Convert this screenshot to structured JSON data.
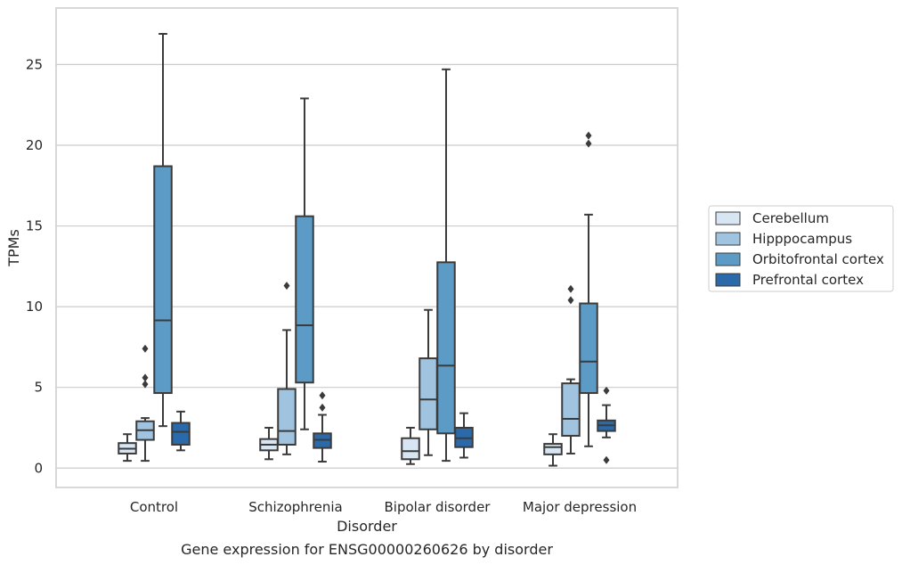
{
  "chart_data": {
    "type": "box",
    "xlabel": "Disorder",
    "ylabel": "TPMs",
    "caption": "Gene expression for ENSG00000260626 by disorder",
    "categories": [
      "Control",
      "Schizophrenia",
      "Bipolar disorder",
      "Major depression"
    ],
    "ylim": [
      -1.2,
      28.5
    ],
    "yticks": [
      0,
      5,
      10,
      15,
      20,
      25
    ],
    "grid": "horizontal",
    "legend_position": "right",
    "series": [
      {
        "name": "Cerebellum",
        "color": "#d8e6f3",
        "boxes": [
          {
            "whisker_low": 0.45,
            "q1": 0.9,
            "median": 1.2,
            "q3": 1.55,
            "whisker_high": 2.1,
            "outliers": []
          },
          {
            "whisker_low": 0.55,
            "q1": 1.1,
            "median": 1.45,
            "q3": 1.8,
            "whisker_high": 2.5,
            "outliers": []
          },
          {
            "whisker_low": 0.25,
            "q1": 0.55,
            "median": 1.05,
            "q3": 1.85,
            "whisker_high": 2.5,
            "outliers": []
          },
          {
            "whisker_low": 0.15,
            "q1": 0.85,
            "median": 1.3,
            "q3": 1.5,
            "whisker_high": 2.1,
            "outliers": []
          }
        ]
      },
      {
        "name": "Hipppocampus",
        "color": "#a0c4df",
        "boxes": [
          {
            "whisker_low": 0.45,
            "q1": 1.75,
            "median": 2.35,
            "q3": 2.9,
            "whisker_high": 3.1,
            "outliers": [
              5.2,
              5.6,
              7.4
            ]
          },
          {
            "whisker_low": 0.85,
            "q1": 1.45,
            "median": 2.3,
            "q3": 4.9,
            "whisker_high": 8.55,
            "outliers": [
              11.3
            ]
          },
          {
            "whisker_low": 0.8,
            "q1": 2.4,
            "median": 4.25,
            "q3": 6.8,
            "whisker_high": 9.8,
            "outliers": []
          },
          {
            "whisker_low": 0.9,
            "q1": 2.0,
            "median": 3.05,
            "q3": 5.25,
            "whisker_high": 5.5,
            "outliers": [
              10.4,
              11.1
            ]
          }
        ]
      },
      {
        "name": "Orbitofrontal cortex",
        "color": "#5b9bc6",
        "boxes": [
          {
            "whisker_low": 2.6,
            "q1": 4.65,
            "median": 9.15,
            "q3": 18.7,
            "whisker_high": 26.9,
            "outliers": []
          },
          {
            "whisker_low": 2.4,
            "q1": 5.3,
            "median": 8.85,
            "q3": 15.6,
            "whisker_high": 22.9,
            "outliers": []
          },
          {
            "whisker_low": 0.45,
            "q1": 2.15,
            "median": 6.35,
            "q3": 12.75,
            "whisker_high": 24.7,
            "outliers": []
          },
          {
            "whisker_low": 1.35,
            "q1": 4.65,
            "median": 6.6,
            "q3": 10.2,
            "whisker_high": 15.7,
            "outliers": [
              20.1,
              20.6
            ]
          }
        ]
      },
      {
        "name": "Prefrontal cortex",
        "color": "#2b6aaa",
        "boxes": [
          {
            "whisker_low": 1.1,
            "q1": 1.45,
            "median": 2.25,
            "q3": 2.8,
            "whisker_high": 3.5,
            "outliers": []
          },
          {
            "whisker_low": 0.4,
            "q1": 1.25,
            "median": 1.75,
            "q3": 2.15,
            "whisker_high": 3.3,
            "outliers": [
              3.75,
              4.5
            ]
          },
          {
            "whisker_low": 0.65,
            "q1": 1.3,
            "median": 1.85,
            "q3": 2.5,
            "whisker_high": 3.4,
            "outliers": []
          },
          {
            "whisker_low": 1.9,
            "q1": 2.3,
            "median": 2.65,
            "q3": 2.95,
            "whisker_high": 3.9,
            "outliers": [
              0.5,
              4.8
            ]
          }
        ]
      }
    ]
  },
  "colors": {
    "frame": "#cccccc",
    "grid": "#cccccc",
    "box_edge": "#3b3b3b",
    "text": "#262626"
  }
}
